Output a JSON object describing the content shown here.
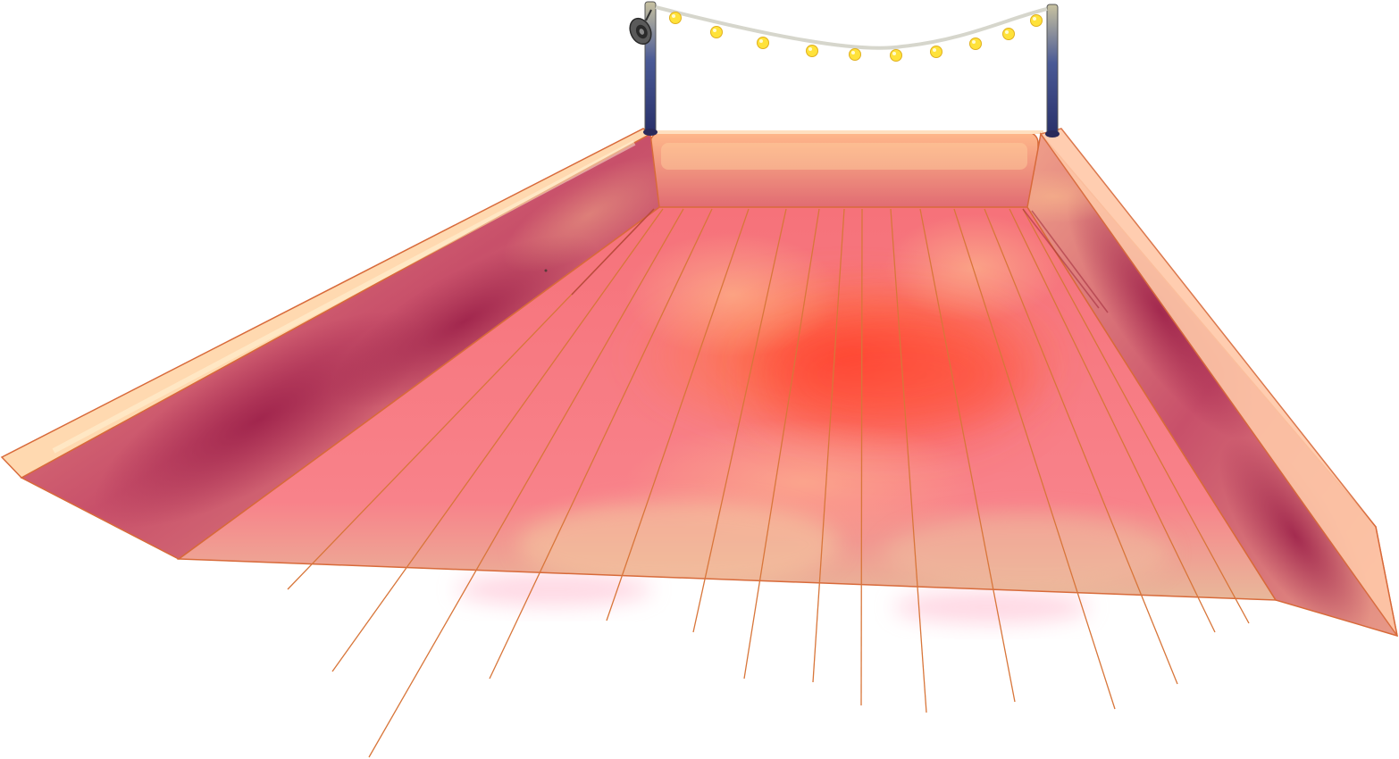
{
  "scene": {
    "description_words": [],
    "colors": {
      "background": "#ffffff",
      "outline": "#d86a3a",
      "floor_base": "#f2737a",
      "floor_hot": "#ff5a3a",
      "floor_warm": "#ffb070",
      "wall_dark": "#b0305a",
      "rim": "#ffd9b0",
      "pole": "#3a4a8a",
      "wire": "#d8d8d0",
      "bulb": "#ffe23a"
    },
    "string_lights": {
      "bulb_count": 10
    },
    "speaker_icon": "speaker-icon"
  }
}
